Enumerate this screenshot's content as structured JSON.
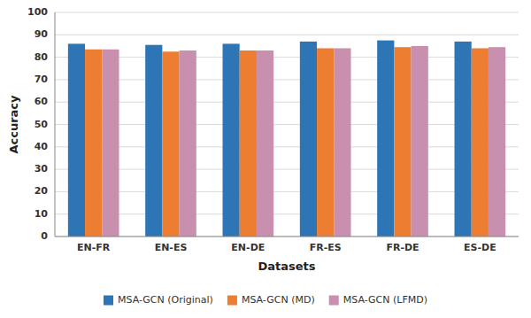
{
  "chart_data": {
    "type": "bar",
    "categories": [
      "EN-FR",
      "EN-ES",
      "EN-DE",
      "FR-ES",
      "FR-DE",
      "ES-DE"
    ],
    "series": [
      {
        "name": "MSA-GCN (Original)",
        "color": "#2E75B6",
        "values": [
          86.0,
          85.5,
          86.0,
          87.0,
          87.5,
          87.0
        ]
      },
      {
        "name": "MSA-GCN (MD)",
        "color": "#ED7D31",
        "values": [
          83.5,
          82.5,
          83.0,
          84.0,
          84.5,
          84.0
        ]
      },
      {
        "name": "MSA-GCN (LFMD)",
        "color": "#C88FAF",
        "values": [
          83.5,
          83.0,
          83.0,
          84.0,
          85.0,
          84.5
        ]
      }
    ],
    "xlabel": "Datasets",
    "ylabel": "Accuracy",
    "ylim": [
      0,
      100
    ],
    "yticks": [
      0,
      10,
      20,
      30,
      40,
      50,
      60,
      70,
      80,
      90,
      100
    ],
    "grid": true,
    "legend": "bottom"
  }
}
